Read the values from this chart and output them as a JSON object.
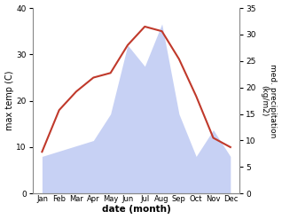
{
  "months": [
    "Jan",
    "Feb",
    "Mar",
    "Apr",
    "May",
    "Jun",
    "Jul",
    "Aug",
    "Sep",
    "Oct",
    "Nov",
    "Dec"
  ],
  "max_temp": [
    9,
    18,
    22,
    25,
    26,
    32,
    36,
    35,
    29,
    21,
    12,
    10
  ],
  "precipitation": [
    7,
    8,
    9,
    10,
    15,
    28,
    24,
    32,
    15,
    7,
    12,
    7
  ],
  "temp_color": "#c0392b",
  "precip_color": "#b0bef0",
  "left_ylabel": "max temp (C)",
  "right_ylabel": "med. precipitation\n(kg/m2)",
  "xlabel": "date (month)",
  "ylim_left": [
    0,
    40
  ],
  "ylim_right": [
    0,
    35
  ],
  "yticks_left": [
    0,
    10,
    20,
    30,
    40
  ],
  "yticks_right": [
    0,
    5,
    10,
    15,
    20,
    25,
    30,
    35
  ],
  "bg_color": "#ffffff",
  "fig_width": 3.18,
  "fig_height": 2.47,
  "dpi": 100
}
